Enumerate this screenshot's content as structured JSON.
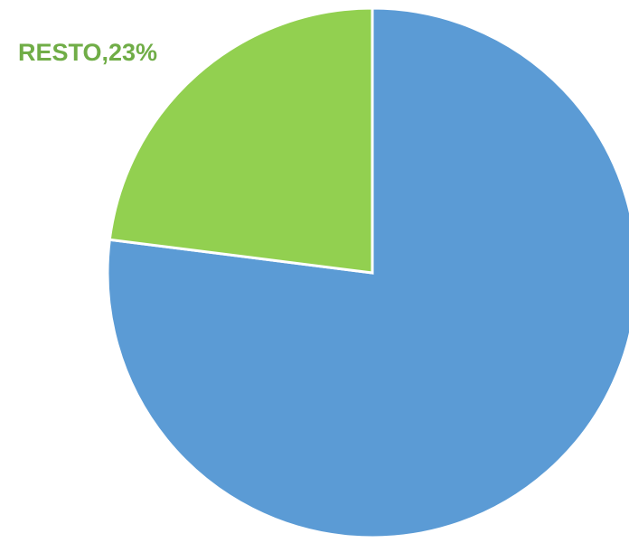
{
  "chart_data": {
    "type": "pie",
    "values": [
      77,
      23
    ],
    "value_labels": [
      null,
      "RESTO,23%"
    ],
    "colors": [
      "#5b9bd5",
      "#92d050"
    ],
    "label_colors": [
      null,
      "#70ad47"
    ]
  }
}
